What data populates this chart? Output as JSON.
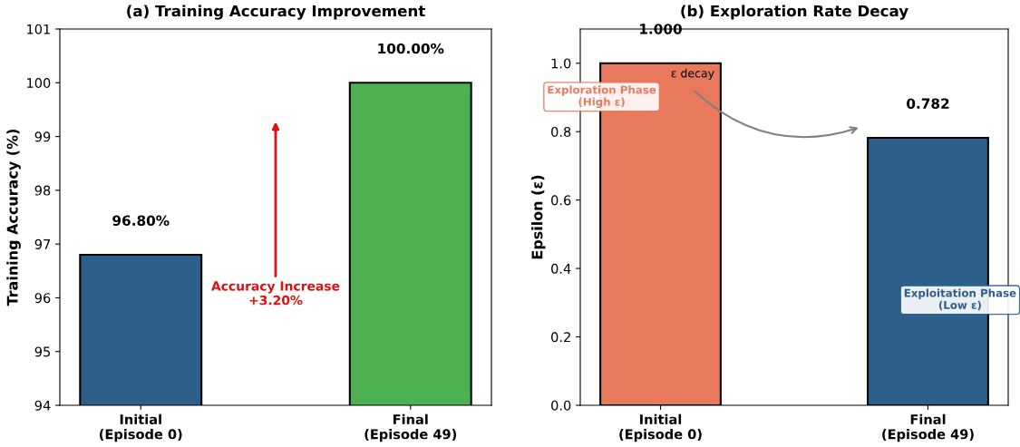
{
  "chart_data": [
    {
      "type": "bar",
      "title": "(a) Training Accuracy Improvement",
      "ylabel": "Training Accuracy (%)",
      "categories": [
        "Initial\n(Episode 0)",
        "Final\n(Episode 49)"
      ],
      "values": [
        96.8,
        100.0
      ],
      "colors": [
        "#2e5f8a",
        "#4caf50"
      ],
      "value_labels": [
        "96.80%",
        "100.00%"
      ],
      "ylim": [
        94,
        101
      ],
      "yticks": [
        94,
        95,
        96,
        97,
        98,
        99,
        100,
        101
      ],
      "annotations": [
        "Accuracy Increase\n+3.20%"
      ]
    },
    {
      "type": "bar",
      "title": "(b) Exploration Rate Decay",
      "ylabel": "Epsilon (ε)",
      "categories": [
        "Initial\n(Episode 0)",
        "Final\n(Episode 49)"
      ],
      "values": [
        1.0,
        0.782
      ],
      "colors": [
        "#e8795d",
        "#2e5f8a"
      ],
      "value_labels": [
        "1.000",
        "0.782"
      ],
      "ylim": [
        0,
        1.1
      ],
      "yticks": [
        {
          "value": 0,
          "label": "0.0"
        },
        {
          "value": 0.2,
          "label": "0.2"
        },
        {
          "value": 0.4,
          "label": "0.4"
        },
        {
          "value": 0.6,
          "label": "0.6"
        },
        {
          "value": 0.8,
          "label": "0.8"
        },
        {
          "value": 1.0,
          "label": "1.0"
        }
      ],
      "annotations": [
        "ε decay",
        "Exploration Phase\n(High ε)",
        "Exploitation Phase\n(Low ε)"
      ]
    }
  ]
}
